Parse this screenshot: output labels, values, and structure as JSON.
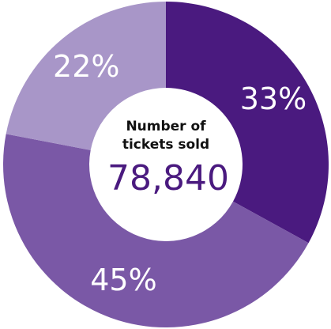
{
  "chart_data": {
    "type": "donut",
    "categories": [
      null,
      null,
      null
    ],
    "values": [
      33,
      45,
      22
    ],
    "value_labels": [
      "33%",
      "45%",
      "22%"
    ],
    "colors": [
      "#4a1a7f",
      "#7a58a6",
      "#a896c8"
    ],
    "center_title": [
      "Number of",
      "tickets sold"
    ],
    "center_value": "78,840"
  }
}
